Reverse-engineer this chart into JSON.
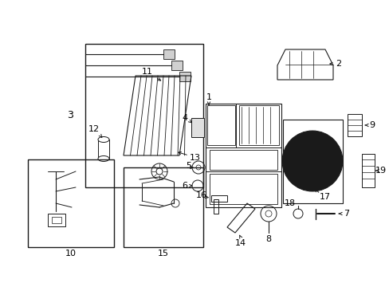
{
  "bg_color": "#ffffff",
  "line_color": "#1a1a1a",
  "fig_width": 4.89,
  "fig_height": 3.6,
  "dpi": 100,
  "label_fs": 8,
  "arrow_lw": 0.8
}
